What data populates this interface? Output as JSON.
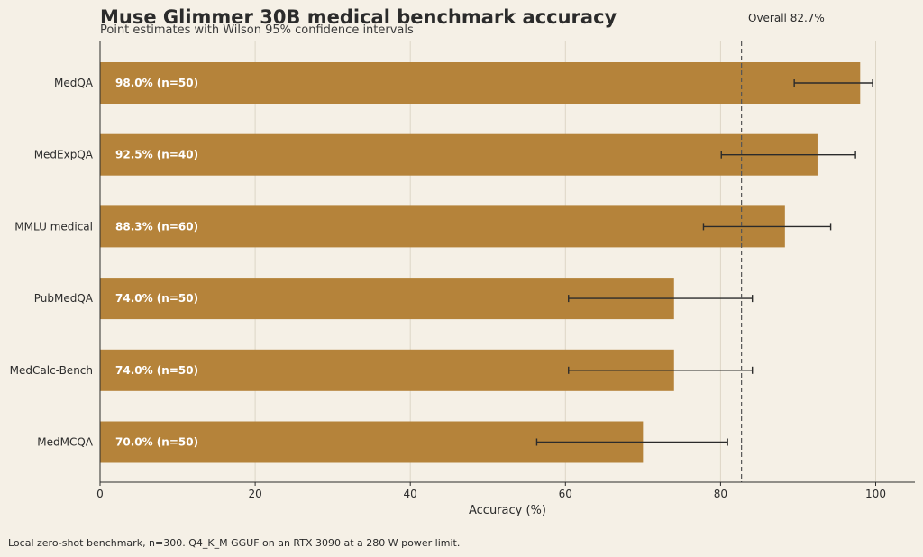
{
  "chart_data": {
    "type": "bar",
    "orientation": "horizontal",
    "title": "Muse Glimmer 30B medical benchmark accuracy",
    "subtitle": "Point estimates with Wilson 95% confidence intervals",
    "xlabel": "Accuracy (%)",
    "xlim": [
      0,
      105
    ],
    "xticks": [
      0,
      20,
      40,
      60,
      80,
      100
    ],
    "grid": "vertical",
    "bar_color": "#b5833a",
    "categories": [
      "MedQA",
      "MedExpQA",
      "MMLU medical",
      "PubMedQA",
      "MedCalc-Bench",
      "MedMCQA"
    ],
    "values": [
      98.0,
      92.5,
      88.3,
      74.0,
      74.0,
      70.0
    ],
    "n": [
      50,
      40,
      60,
      50,
      50,
      50
    ],
    "ci_low": [
      89.5,
      80.1,
      77.8,
      60.4,
      60.4,
      56.3
    ],
    "ci_high": [
      99.6,
      97.4,
      94.2,
      84.1,
      84.1,
      80.9
    ],
    "bar_labels": [
      "98.0%  (n=50)",
      "92.5%  (n=40)",
      "88.3%  (n=60)",
      "74.0%  (n=50)",
      "74.0%  (n=50)",
      "70.0%  (n=50)"
    ],
    "reference_line": {
      "value": 82.7,
      "label": "Overall 82.7%"
    }
  },
  "footnote": "Local zero-shot benchmark, n=300. Q4_K_M GGUF on an RTX 3090 at a 280 W power limit."
}
